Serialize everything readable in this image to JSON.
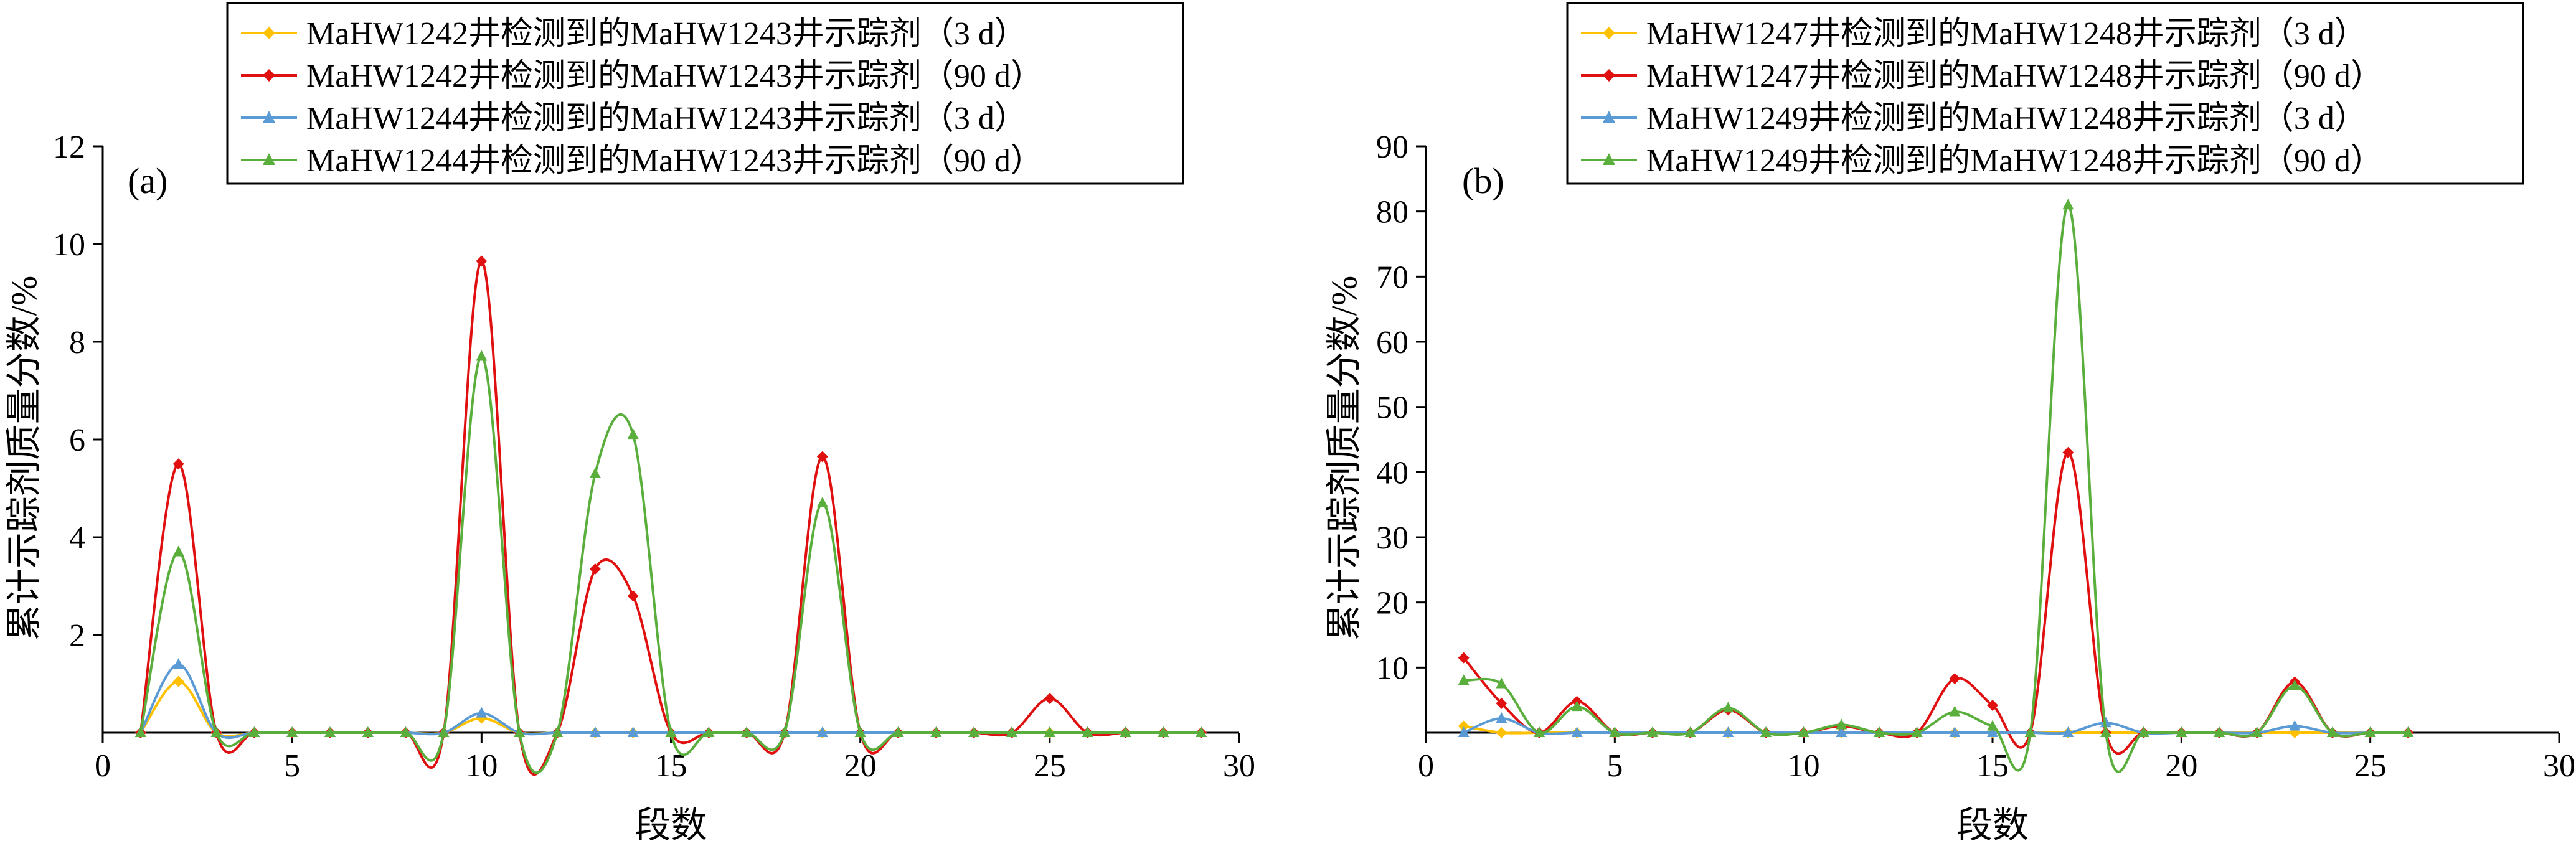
{
  "chart_data": [
    {
      "type": "line",
      "panel_label": "(a)",
      "xlabel": "段数",
      "ylabel": "累计示踪剂质量分数/%",
      "xlim": [
        0,
        30
      ],
      "ylim": [
        0,
        12
      ],
      "x_ticks": [
        "0",
        "5",
        "10",
        "15",
        "20",
        "25",
        "30"
      ],
      "y_ticks": [
        "2",
        "4",
        "6",
        "8",
        "10",
        "12"
      ],
      "grid": false,
      "legend": "top",
      "x": [
        1,
        2,
        3,
        4,
        5,
        6,
        7,
        8,
        9,
        10,
        11,
        12,
        13,
        14,
        15,
        16,
        17,
        18,
        19,
        20,
        21,
        22,
        23,
        24,
        25,
        26,
        27,
        28,
        29
      ],
      "series": [
        {
          "name": "MaHW1242井检测到的MaHW1243井示踪剂（3 d）",
          "color": "#FFC000",
          "marker": "diamond",
          "values": [
            0,
            1.05,
            0,
            0,
            0,
            0,
            0,
            0,
            0,
            0.3,
            0,
            0,
            0,
            0,
            0,
            0,
            0,
            0,
            0,
            0,
            0,
            0,
            0,
            0,
            0,
            0,
            0,
            0,
            0
          ]
        },
        {
          "name": "MaHW1242井检测到的MaHW1243井示踪剂（90 d）",
          "color": "#E01010",
          "marker": "diamond",
          "values": [
            0,
            5.5,
            0,
            0,
            0,
            0,
            0,
            0,
            0,
            9.65,
            0,
            0,
            3.35,
            2.8,
            0,
            0,
            0,
            0,
            5.65,
            0,
            0,
            0,
            0,
            0,
            0.7,
            0,
            0,
            0,
            0
          ]
        },
        {
          "name": "MaHW1244井检测到的MaHW1243井示踪剂（3 d）",
          "color": "#5B9BD5",
          "marker": "triangle",
          "values": [
            0,
            1.4,
            0,
            0,
            0,
            0,
            0,
            0,
            0,
            0.4,
            0,
            0,
            0,
            0,
            0,
            0,
            0,
            0,
            0,
            0,
            0,
            0,
            0,
            0,
            0,
            0,
            0,
            0,
            0
          ]
        },
        {
          "name": "MaHW1244井检测到的MaHW1243井示踪剂（90 d）",
          "color": "#5AAE3C",
          "marker": "triangle",
          "values": [
            0,
            3.7,
            0,
            0,
            0,
            0,
            0,
            0,
            0,
            7.7,
            0,
            0,
            5.3,
            6.1,
            0,
            0,
            0,
            0,
            4.7,
            0,
            0,
            0,
            0,
            0,
            0,
            0,
            0,
            0,
            0
          ]
        }
      ]
    },
    {
      "type": "line",
      "panel_label": "(b)",
      "xlabel": "段数",
      "ylabel": "累计示踪剂质量分数/%",
      "xlim": [
        0,
        30
      ],
      "ylim": [
        0,
        90
      ],
      "x_ticks": [
        "0",
        "5",
        "10",
        "15",
        "20",
        "25",
        "30"
      ],
      "y_ticks": [
        "10",
        "20",
        "30",
        "40",
        "50",
        "60",
        "70",
        "80",
        "90"
      ],
      "grid": false,
      "legend": "top",
      "x": [
        1,
        2,
        3,
        4,
        5,
        6,
        7,
        8,
        9,
        10,
        11,
        12,
        13,
        14,
        15,
        16,
        17,
        18,
        19,
        20,
        21,
        22,
        23,
        24,
        25,
        26
      ],
      "series": [
        {
          "name": "MaHW1247井检测到的MaHW1248井示踪剂（3 d）",
          "color": "#FFC000",
          "marker": "diamond",
          "values": [
            1,
            0,
            0,
            0,
            0,
            0,
            0,
            0,
            0,
            0,
            0,
            0,
            0,
            0,
            0,
            0,
            0,
            0,
            0,
            0,
            0,
            0,
            0,
            0,
            0,
            0
          ]
        },
        {
          "name": "MaHW1247井检测到的MaHW1248井示踪剂（90 d）",
          "color": "#E01010",
          "marker": "diamond",
          "values": [
            11.5,
            4.5,
            0,
            4.8,
            0,
            0,
            0,
            3.5,
            0,
            0,
            1,
            0,
            0,
            8.3,
            4.2,
            0,
            43,
            0,
            0,
            0,
            0,
            0,
            7.8,
            0,
            0,
            0
          ]
        },
        {
          "name": "MaHW1249井检测到的MaHW1248井示踪剂（3 d）",
          "color": "#5B9BD5",
          "marker": "triangle",
          "values": [
            0,
            2.2,
            0,
            0,
            0,
            0,
            0,
            0,
            0,
            0,
            0,
            0,
            0,
            0,
            0,
            0,
            0,
            1.5,
            0,
            0,
            0,
            0,
            1,
            0,
            0,
            0
          ]
        },
        {
          "name": "MaHW1249井检测到的MaHW1248井示踪剂（90 d）",
          "color": "#5AAE3C",
          "marker": "triangle",
          "values": [
            8,
            7.5,
            0,
            4,
            0,
            0,
            0,
            3.8,
            0,
            0,
            1.2,
            0,
            0,
            3.2,
            1,
            0,
            81,
            0,
            0,
            0,
            0,
            0,
            7.2,
            0,
            0,
            0
          ]
        }
      ]
    }
  ]
}
